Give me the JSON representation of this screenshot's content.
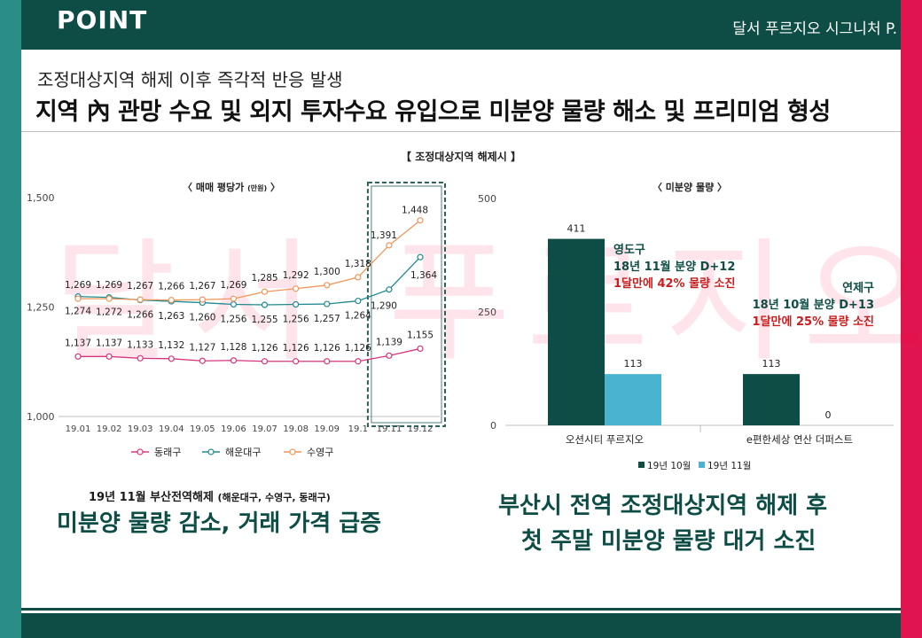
{
  "header": {
    "left_text": "POINT",
    "right_text": "달서 푸르지오 시그니처 P."
  },
  "watermark": "달서 푸르지오 시그니처",
  "subtitle": "조정대상지역 해제 이후 즉각적 반응 발생",
  "title": "지역 內 관망 수요 및 외지 투자수요 유입으로 미분양 물량 해소 및 프리미엄 형성",
  "main_chart_title": "【 조정대상지역 해제시 】",
  "colors": {
    "dongnae": "#d6367f",
    "haeundae": "#1f8a8f",
    "suyeong": "#f0965a",
    "bar_oct": "#0d4d45",
    "bar_nov": "#4ab3cf",
    "brand": "#0d4d45",
    "accent_red": "#c81e1e"
  },
  "chart_data": [
    {
      "type": "line",
      "title": "〈 매매 평당가 ",
      "title_unit": "(만원)",
      "title_end": " 〉",
      "x": [
        "19.01",
        "19.02",
        "19.03",
        "19.04",
        "19.05",
        "19.06",
        "19.07",
        "19.08",
        "19.09",
        "19.1",
        "19.11",
        "19.12"
      ],
      "ylim": [
        1000,
        1500
      ],
      "yticks": [
        "1,000",
        "1,250",
        "1,500"
      ],
      "ytick_values": [
        1000,
        1250,
        1500
      ],
      "series": [
        {
          "name": "동래구",
          "values": [
            1137,
            1137,
            1133,
            1132,
            1127,
            1128,
            1126,
            1126,
            1126,
            1126,
            1139,
            1155
          ],
          "labels": [
            "1,137",
            "1,137",
            "1,133",
            "1,132",
            "1,127",
            "1,128",
            "1,126",
            "1,126",
            "1,126",
            "1,126",
            "1,139",
            "1,155"
          ]
        },
        {
          "name": "해운대구",
          "values": [
            1274,
            1272,
            1266,
            1263,
            1260,
            1256,
            1255,
            1256,
            1257,
            1264,
            1290,
            1364
          ],
          "labels": [
            "1,274",
            "1,272",
            "1,266",
            "1,263",
            "1,260",
            "1,256",
            "1,255",
            "1,256",
            "1,257",
            "1,264",
            "1,290",
            "1,364"
          ]
        },
        {
          "name": "수영구",
          "values": [
            1269,
            1269,
            1267,
            1266,
            1267,
            1269,
            1285,
            1292,
            1300,
            1318,
            1391,
            1448
          ],
          "labels": [
            "1,269",
            "1,269",
            "1,267",
            "1,266",
            "1,267",
            "1,269",
            "1,285",
            "1,292",
            "1,300",
            "1,318",
            "1,391",
            "1,448"
          ]
        }
      ],
      "highlight": [
        "19.11",
        "19.12"
      ],
      "legend": "bottom"
    },
    {
      "type": "bar",
      "title": "〈 미분양 물량 〉",
      "categories": [
        "오션시티 푸르지오",
        "e편한세상 연산 더퍼스트"
      ],
      "ylim": [
        0,
        500
      ],
      "yticks": [
        "0",
        "250",
        "500"
      ],
      "ytick_values": [
        0,
        250,
        500
      ],
      "series": [
        {
          "name": "19년 10월",
          "values": [
            411,
            113
          ]
        },
        {
          "name": "19년 11월",
          "values": [
            113,
            0
          ]
        }
      ],
      "annotations": [
        {
          "line1": "영도구",
          "line2": "18년 11월 분양 D+12",
          "line3": "1달만에 42% 물량 소진"
        },
        {
          "line1": "연제구",
          "line2": "18년 10월 분양 D+13",
          "line3": "1달만에 25% 물량 소진"
        }
      ],
      "legend": "bottom"
    }
  ],
  "captions": {
    "left_small": "19년 11월 부산전역해제 ",
    "left_small_paren": "(해운대구, 수영구, 동래구)",
    "left_big": "미분양 물량 감소, 거래 가격 급증",
    "right_big1": "부산시 전역 조정대상지역 해제 후",
    "right_big2": "첫 주말 미분양 물량 대거 소진"
  }
}
